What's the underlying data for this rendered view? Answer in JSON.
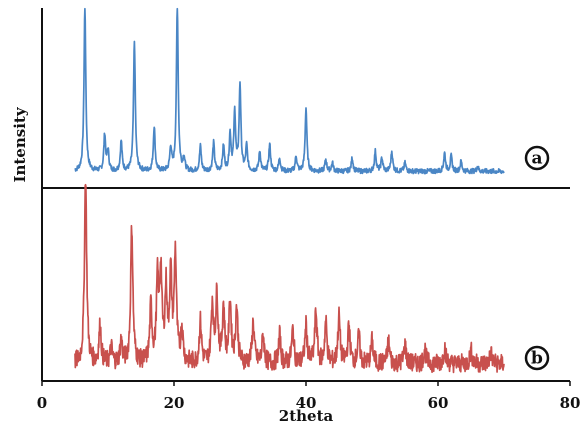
{
  "chart_data": {
    "type": "line",
    "xlabel": "2theta",
    "ylabel": "Intensity",
    "xlim": [
      0,
      80
    ],
    "x_ticks": [
      "0",
      "20",
      "40",
      "60",
      "80"
    ],
    "grid": false,
    "panels": [
      {
        "label": "a",
        "color": "#4a86c5",
        "baseline": 0.04,
        "noise": 0.015,
        "x_range": [
          5,
          70
        ],
        "peaks": [
          {
            "x": 6.5,
            "y": 1.0
          },
          {
            "x": 9.5,
            "y": 0.22
          },
          {
            "x": 10.0,
            "y": 0.12
          },
          {
            "x": 12.0,
            "y": 0.18
          },
          {
            "x": 14.0,
            "y": 0.78
          },
          {
            "x": 17.0,
            "y": 0.27
          },
          {
            "x": 19.5,
            "y": 0.14
          },
          {
            "x": 20.5,
            "y": 1.0
          },
          {
            "x": 21.5,
            "y": 0.08
          },
          {
            "x": 24.0,
            "y": 0.15
          },
          {
            "x": 26.0,
            "y": 0.17
          },
          {
            "x": 27.5,
            "y": 0.15
          },
          {
            "x": 28.5,
            "y": 0.22
          },
          {
            "x": 29.2,
            "y": 0.35
          },
          {
            "x": 30.0,
            "y": 0.52
          },
          {
            "x": 31.0,
            "y": 0.15
          },
          {
            "x": 33.0,
            "y": 0.12
          },
          {
            "x": 34.5,
            "y": 0.16
          },
          {
            "x": 36.0,
            "y": 0.08
          },
          {
            "x": 38.5,
            "y": 0.09
          },
          {
            "x": 40.0,
            "y": 0.38
          },
          {
            "x": 43.0,
            "y": 0.07
          },
          {
            "x": 44.0,
            "y": 0.05
          },
          {
            "x": 47.0,
            "y": 0.08
          },
          {
            "x": 50.5,
            "y": 0.12
          },
          {
            "x": 51.5,
            "y": 0.08
          },
          {
            "x": 53.0,
            "y": 0.12
          },
          {
            "x": 55.0,
            "y": 0.05
          },
          {
            "x": 61.0,
            "y": 0.11
          },
          {
            "x": 62.0,
            "y": 0.09
          },
          {
            "x": 63.5,
            "y": 0.06
          },
          {
            "x": 66.0,
            "y": 0.03
          }
        ]
      },
      {
        "label": "b",
        "color": "#c8504d",
        "baseline": 0.06,
        "noise": 0.05,
        "x_range": [
          5,
          70
        ],
        "peaks": [
          {
            "x": 6.6,
            "y": 1.0
          },
          {
            "x": 8.8,
            "y": 0.2
          },
          {
            "x": 10.5,
            "y": 0.08
          },
          {
            "x": 12.0,
            "y": 0.12
          },
          {
            "x": 13.6,
            "y": 0.73
          },
          {
            "x": 16.5,
            "y": 0.3
          },
          {
            "x": 17.5,
            "y": 0.42
          },
          {
            "x": 18.0,
            "y": 0.48
          },
          {
            "x": 18.8,
            "y": 0.38
          },
          {
            "x": 19.5,
            "y": 0.46
          },
          {
            "x": 20.2,
            "y": 0.58
          },
          {
            "x": 21.2,
            "y": 0.18
          },
          {
            "x": 24.0,
            "y": 0.22
          },
          {
            "x": 25.8,
            "y": 0.32
          },
          {
            "x": 26.5,
            "y": 0.36
          },
          {
            "x": 27.5,
            "y": 0.3
          },
          {
            "x": 28.5,
            "y": 0.33
          },
          {
            "x": 29.5,
            "y": 0.3
          },
          {
            "x": 32.0,
            "y": 0.22
          },
          {
            "x": 33.5,
            "y": 0.15
          },
          {
            "x": 36.0,
            "y": 0.15
          },
          {
            "x": 38.0,
            "y": 0.18
          },
          {
            "x": 40.0,
            "y": 0.2
          },
          {
            "x": 41.5,
            "y": 0.28
          },
          {
            "x": 43.0,
            "y": 0.22
          },
          {
            "x": 45.0,
            "y": 0.25
          },
          {
            "x": 46.5,
            "y": 0.2
          },
          {
            "x": 48.0,
            "y": 0.15
          },
          {
            "x": 50.0,
            "y": 0.12
          },
          {
            "x": 52.5,
            "y": 0.12
          },
          {
            "x": 55.0,
            "y": 0.1
          },
          {
            "x": 58.0,
            "y": 0.08
          },
          {
            "x": 61.0,
            "y": 0.09
          },
          {
            "x": 65.0,
            "y": 0.07
          },
          {
            "x": 68.0,
            "y": 0.06
          }
        ]
      }
    ]
  }
}
